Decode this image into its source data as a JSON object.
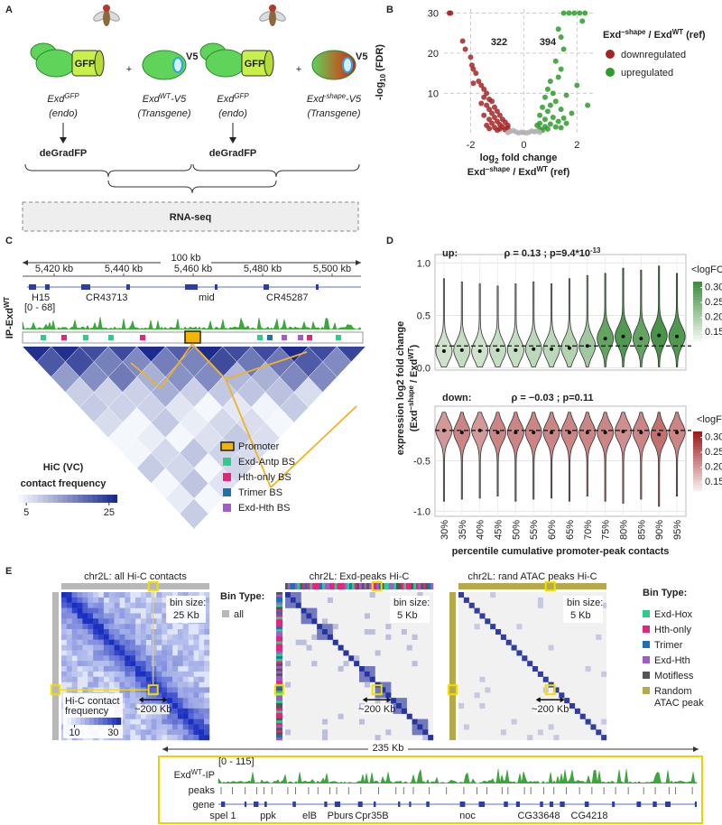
{
  "panels": {
    "A": {
      "label": "A",
      "left": {
        "gfp": "GFP",
        "v5": "V5",
        "plus": "+",
        "endo": [
          "Exd",
          "GFP"
        ],
        "endo_note": "(endo)",
        "transgene": [
          "Exd",
          "WT",
          "-V5"
        ],
        "transgene_note": "(Transgene)",
        "degrad": "deGradFP"
      },
      "right": {
        "gfp": "GFP",
        "v5": "V5",
        "plus": "+",
        "endo": [
          "Exd",
          "GFP"
        ],
        "endo_note": "(endo)",
        "transgene": [
          "Exd",
          "-shape",
          "-V5"
        ],
        "transgene_note": "(Transgene)",
        "degrad": "deGradFP"
      },
      "assay": "RNA-seq"
    },
    "B": {
      "label": "B"
    },
    "C": {
      "label": "C",
      "scale": "100 kb",
      "coords": [
        "5,420 kb",
        "5,440 kb",
        "5,460 kb",
        "5,480 kb",
        "5,500 kb"
      ],
      "genes": [
        "H15",
        "CR43713",
        "mid",
        "CR45287"
      ],
      "track_range": "[0 - 68]",
      "track": [
        "IP-Exd",
        "WT"
      ],
      "legend": [
        "Promoter",
        "Exd-Antp BS",
        "Hth-only BS",
        "Trimer BS",
        "Exd-Hth BS"
      ],
      "legend_colors": [
        "#f2b600",
        "#2ecc8a",
        "#e0287a",
        "#1f6fb5",
        "#a05cc8"
      ],
      "hic_title": "HiC (VC)",
      "hic_subtitle": "contact frequency",
      "hic_ticks": [
        5,
        25
      ]
    },
    "D": {
      "label": "D"
    },
    "E": {
      "label": "E",
      "maps": [
        {
          "title": "chr2L: all Hi-C contacts",
          "bin_label": "bin size:",
          "bin": "25 Kb",
          "span": "~200 Kb"
        },
        {
          "title": "chr2L: Exd-peaks Hi-C",
          "bin_label": "bin size:",
          "bin": "5 Kb",
          "span": "~200 Kb"
        },
        {
          "title": "chr2L: rand ATAC peaks Hi-C",
          "bin_label": "bin size:",
          "bin": "5 Kb",
          "span": "~200 Kb"
        }
      ],
      "legend1": {
        "title": "Bin Type:",
        "items": [
          "all"
        ],
        "colors": [
          "#b8b8b8"
        ]
      },
      "colorbar": {
        "title": [
          "Hi-C contact",
          "frequency"
        ],
        "ticks": [
          10,
          30
        ]
      },
      "legend2": {
        "title": "Bin Type:",
        "items": [
          "Exd-Hox",
          "Hth-only",
          "Trimer",
          "Exd-Hth",
          "Motifless",
          [
            "Random",
            "ATAC peak"
          ]
        ],
        "colors": [
          "#2ecc8a",
          "#e0287a",
          "#1f6fb5",
          "#a05cc8",
          "#555555",
          "#b5aa4a"
        ]
      },
      "browser": {
        "span": "235 Kb",
        "range": "[0 - 115]",
        "track": [
          "Exd",
          "WT",
          "-IP"
        ],
        "peaks": "peaks",
        "gene": "gene",
        "genes": [
          "spel 1",
          "ppk",
          "elB",
          "Pburs",
          "Cpr35B",
          "noc",
          "CG33648",
          "CG4218"
        ]
      }
    }
  },
  "chart_data": [
    {
      "type": "scatter",
      "ylabel": [
        "-log",
        "10",
        " (FDR)"
      ],
      "xlabel": [
        "log",
        "2",
        " fold change"
      ],
      "xlabel2": [
        "Exd",
        "–shape",
        " / Exd",
        "WT",
        " (ref)"
      ],
      "legend_title": [
        "Exd",
        "–shape",
        " / Exd",
        "WT",
        " (ref)"
      ],
      "xlim": [
        -3,
        2.6
      ],
      "ylim": [
        -0.5,
        31
      ],
      "xticks": [
        -2,
        0,
        2
      ],
      "yticks": [
        10,
        20,
        30
      ],
      "grid": true,
      "series": [
        {
          "name": "downregulated",
          "color": "#a52424",
          "count": 322,
          "x": [
            -2.8,
            -2.75,
            -2.3,
            -2.2,
            -2.0,
            -1.95,
            -1.9,
            -1.8,
            -1.7,
            -1.6,
            -1.9,
            -1.5,
            -1.4,
            -1.5,
            -1.3,
            -1.2,
            -1.6,
            -1.4,
            -1.1,
            -1.3,
            -1.0,
            -1.2,
            -0.9,
            -1.5,
            -1.1,
            -0.8,
            -1.3,
            -1.0,
            -0.7,
            -1.2,
            -0.9,
            -0.6,
            -1.4,
            -0.8,
            -1.1,
            -0.6,
            -0.9,
            -1.3,
            -0.7,
            -1.0
          ],
          "values": [
            30,
            30,
            23,
            21,
            19,
            17,
            16,
            15,
            13,
            12,
            12.5,
            11,
            10,
            9,
            8.5,
            8,
            7.5,
            7,
            6.5,
            6,
            5.5,
            5,
            4.5,
            4.5,
            4,
            3.5,
            3.5,
            3,
            2.8,
            2.5,
            2.2,
            2,
            2,
            1.6,
            1.5,
            1.3,
            1.1,
            1.2,
            0.9,
            0.8
          ]
        },
        {
          "name": "upregulated",
          "color": "#2e9b2e",
          "count": 394,
          "x": [
            1.5,
            1.7,
            1.9,
            2.1,
            2.3,
            2.2,
            1.3,
            1.4,
            1.5,
            1.2,
            1.4,
            1.3,
            1.0,
            2.0,
            0.9,
            1.1,
            1.6,
            0.8,
            1.2,
            2.4,
            1.0,
            0.7,
            1.4,
            0.9,
            1.8,
            0.6,
            1.1,
            1.5,
            0.8,
            1.3,
            0.6,
            1.0,
            1.6,
            0.5,
            0.8,
            1.2,
            0.6,
            0.9,
            1.4,
            0.7
          ],
          "values": [
            30,
            30,
            30,
            30,
            30,
            28,
            26,
            24,
            21,
            18,
            16,
            14,
            13,
            12,
            11,
            10,
            9.5,
            9,
            8,
            7,
            7,
            6.5,
            6,
            5.5,
            5,
            4.5,
            4,
            3.8,
            3.5,
            3,
            2.5,
            2.3,
            2.5,
            2,
            1.7,
            1.6,
            1.2,
            1.1,
            1.4,
            0.8
          ]
        },
        {
          "color": "#b0b0b0",
          "x": [
            -0.5,
            -0.3,
            -0.1,
            0,
            0.2,
            0.4,
            0.5,
            -0.4,
            0.3,
            -0.2,
            0.1,
            0.6,
            -0.6
          ],
          "values": [
            0.5,
            0.4,
            0.3,
            0.2,
            0.3,
            0.4,
            0.6,
            0.7,
            0.6,
            0.1,
            0.1,
            0.3,
            0.2
          ]
        }
      ]
    },
    {
      "type": "violin",
      "title": "up:",
      "subtitle": [
        "ρ = 0.13 ; p=9.4*10",
        "-13"
      ],
      "color": "#2e9b2e",
      "ylabel": "expression log2 fold change",
      "ylabel2": [
        "(Exd",
        "–shape",
        " / Exd",
        "WT",
        ")"
      ],
      "categories": [
        "30%",
        "35%",
        "40%",
        "45%",
        "50%",
        "55%",
        "60%",
        "65%",
        "70%",
        "75%",
        "80%",
        "85%",
        "90%",
        "95%"
      ],
      "values": [
        0.16,
        0.17,
        0.16,
        0.17,
        0.17,
        0.18,
        0.18,
        0.19,
        0.21,
        0.28,
        0.3,
        0.28,
        0.31,
        0.3
      ],
      "max": [
        0.85,
        0.82,
        0.8,
        0.78,
        0.8,
        0.82,
        0.8,
        0.85,
        0.88,
        0.9,
        0.95,
        0.93,
        0.97,
        0.9
      ],
      "min": [
        0.01,
        0.01,
        0.01,
        0.01,
        0.01,
        0.01,
        0.01,
        0.01,
        0.01,
        0.01,
        0.01,
        0.01,
        0.01,
        0.01
      ],
      "reference": 0.21,
      "ylim": [
        -0.02,
        1.08
      ],
      "yticks": [
        {
          "value": 0,
          "label": "0.0"
        },
        0.5,
        {
          "value": 1,
          "label": "1.0"
        }
      ],
      "grid": true,
      "colorbar": {
        "title": "<logFC>",
        "lim": [
          0.12,
          0.32
        ],
        "colors": [
          "#f2f7ef",
          "#3f8f3f"
        ],
        "ticks": [
          0.15,
          {
            "value": 0.2,
            "label": "0.20"
          },
          0.25,
          {
            "value": 0.3,
            "label": "0.30"
          }
        ]
      }
    },
    {
      "type": "violin",
      "title": "down:",
      "subtitle": [
        "ρ = −0.03 ; p=0.11"
      ],
      "color": "#b22222",
      "xlabel": "percentile cumulative  promoter-peak contacts",
      "categories": [
        "30%",
        "35%",
        "40%",
        "45%",
        "50%",
        "55%",
        "60%",
        "65%",
        "70%",
        "75%",
        "80%",
        "85%",
        "90%",
        "95%"
      ],
      "values": [
        -0.2,
        -0.22,
        -0.2,
        -0.22,
        -0.22,
        -0.22,
        -0.22,
        -0.22,
        -0.22,
        -0.22,
        -0.21,
        -0.22,
        -0.24,
        -0.22
      ],
      "max": [
        -0.02,
        -0.02,
        -0.02,
        -0.02,
        -0.02,
        -0.02,
        -0.02,
        -0.02,
        -0.02,
        -0.02,
        -0.02,
        -0.02,
        -0.02,
        -0.02
      ],
      "min": [
        -0.9,
        -0.88,
        -0.87,
        -0.85,
        -0.9,
        -0.88,
        -0.87,
        -0.9,
        -0.85,
        -0.9,
        -0.92,
        -0.88,
        -0.95,
        -0.85
      ],
      "reference": -0.2,
      "ylim": [
        -1.05,
        0.04
      ],
      "yticks": [
        {
          "value": -1,
          "label": "-1.0"
        },
        -0.5
      ],
      "grid": true,
      "colorbar": {
        "title": "<logFC>",
        "lim": [
          0.12,
          0.32
        ],
        "colors": [
          "#f7eded",
          "#9e1c1c"
        ],
        "ticks": [
          0.15,
          {
            "value": 0.2,
            "label": "0.20"
          },
          0.25,
          {
            "value": 0.3,
            "label": "0.30"
          }
        ]
      }
    }
  ]
}
